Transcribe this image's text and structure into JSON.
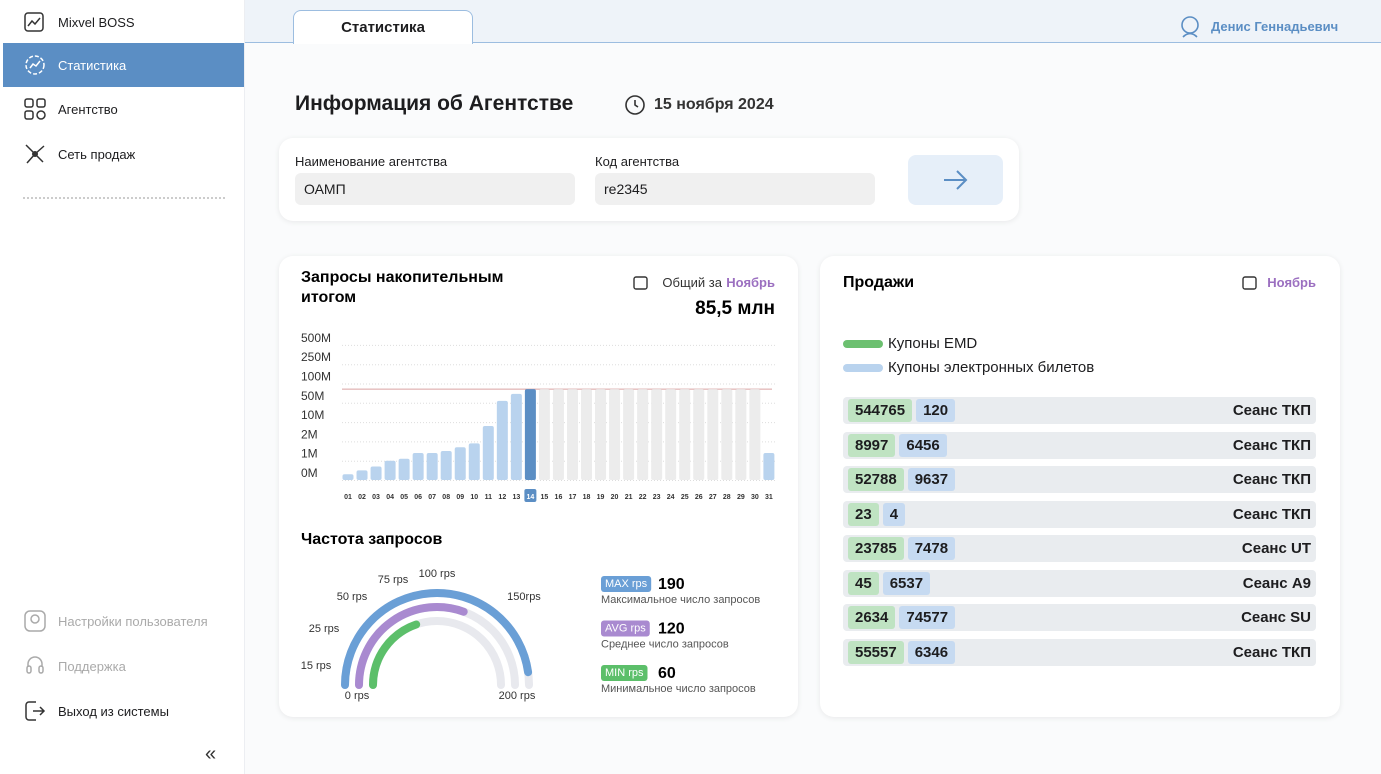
{
  "sidebar": {
    "brand": "Mixvel BOSS",
    "menu": [
      "Статистика",
      "Агентство",
      "Сеть продаж"
    ],
    "footer": [
      "Настройки пользователя",
      "Поддержка",
      "Выход из системы"
    ],
    "collapse": "«"
  },
  "header": {
    "tab": "Статистика",
    "user": "Денис Геннадьевич"
  },
  "page": {
    "title": "Информация об Агентстве",
    "date": "15 ноября 2024"
  },
  "form": {
    "fields": [
      {
        "label": "Наименование агентства",
        "value": "ОАМП"
      },
      {
        "label": "Код агентства",
        "value": "re2345"
      }
    ]
  },
  "chart_data": [
    {
      "type": "bar",
      "title": "Запросы накопительным итогом",
      "total_label": "Общий за",
      "period": "Ноябрь",
      "total": {
        "value": 85.5,
        "label": "85,5 млн"
      },
      "categories": [
        "01",
        "02",
        "03",
        "04",
        "05",
        "06",
        "07",
        "08",
        "09",
        "10",
        "11",
        "12",
        "13",
        "14",
        "15",
        "16",
        "17",
        "18",
        "19",
        "20",
        "21",
        "22",
        "23",
        "24",
        "25",
        "26",
        "27",
        "28",
        "29",
        "30",
        "31"
      ],
      "values": [
        0.3,
        0.5,
        0.7,
        1.0,
        1.1,
        1.4,
        1.4,
        1.5,
        1.7,
        1.9,
        8.4,
        55,
        73,
        85.5,
        null,
        null,
        null,
        null,
        null,
        null,
        null,
        null,
        null,
        null,
        null,
        null,
        null,
        null,
        null,
        null,
        1.4
      ],
      "current_category": "14",
      "color": "#b9d3ee",
      "highlight_color": "#5b8ec4",
      "ylim": [
        0,
        500
      ],
      "yticks": [
        {
          "value": 0,
          "label": "0M"
        },
        {
          "value": 1,
          "label": "1M"
        },
        {
          "value": 2,
          "label": "2M"
        },
        {
          "value": 10,
          "label": "10M"
        },
        {
          "value": 50,
          "label": "50M"
        },
        {
          "value": 100,
          "label": "100M"
        },
        {
          "value": 250,
          "label": "250M"
        },
        {
          "value": 500,
          "label": "500M"
        }
      ],
      "grid": true
    },
    {
      "type": "gauge",
      "title": "Частота запросов",
      "lim": [
        0,
        200
      ],
      "ticks": [
        {
          "value": 0,
          "label": "0 rps"
        },
        {
          "value": 15,
          "label": "15 rps"
        },
        {
          "value": 25,
          "label": "25 rps"
        },
        {
          "value": 50,
          "label": "50 rps"
        },
        {
          "value": 75,
          "label": "75 rps"
        },
        {
          "value": 100,
          "label": "100 rps"
        },
        {
          "value": 150,
          "label": "150rps"
        },
        {
          "value": 200,
          "label": "200 rps"
        }
      ],
      "series": [
        {
          "name": "MAX rps",
          "color": "#6a9fd6",
          "value": 190,
          "description": "Максимальное число запросов"
        },
        {
          "name": "AVG rps",
          "color": "#a98ad0",
          "value": 120,
          "description": "Среднее число запросов"
        },
        {
          "name": "MIN rps",
          "color": "#5cbf6a",
          "value": 60,
          "description": "Минимальное число запросов"
        }
      ]
    }
  ],
  "sales": {
    "title": "Продажи",
    "period": "Ноябрь",
    "legend": [
      {
        "name": "Купоны EMD",
        "color": "#6cc070"
      },
      {
        "name": "Купоны электронных билетов",
        "color": "#b9d3ee"
      }
    ],
    "rows": [
      {
        "emd": 544765,
        "etkt": 120,
        "label": "Сеанс ТКП"
      },
      {
        "emd": 8997,
        "etkt": 6456,
        "label": "Сеанс ТКП"
      },
      {
        "emd": 52788,
        "etkt": 9637,
        "label": "Сеанс ТКП"
      },
      {
        "emd": 23,
        "etkt": 4,
        "label": "Сеанс ТКП"
      },
      {
        "emd": 23785,
        "etkt": 7478,
        "label": "Сеанс UT"
      },
      {
        "emd": 45,
        "etkt": 6537,
        "label": "Сеанс A9"
      },
      {
        "emd": 2634,
        "etkt": 74577,
        "label": "Сеанс SU"
      },
      {
        "emd": 55557,
        "etkt": 6346,
        "label": "Сеанс ТКП"
      }
    ]
  }
}
